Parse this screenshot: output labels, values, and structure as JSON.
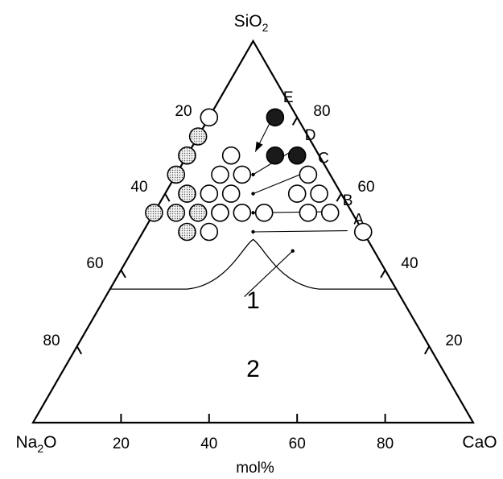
{
  "chart_data": {
    "type": "scatter",
    "subtype": "ternary",
    "vertices": {
      "top": {
        "base": "SiO",
        "sub": "2"
      },
      "left": {
        "base": "Na",
        "sub": "2",
        "tail": "O"
      },
      "right": {
        "base": "CaO",
        "sub": "",
        "tail": ""
      }
    },
    "unit_label": "mol%",
    "bottom_ticks": [
      "20",
      "40",
      "60",
      "80"
    ],
    "left_ticks": [
      "80",
      "60",
      "40",
      "20"
    ],
    "right_ticks": [
      "80",
      "60",
      "40",
      "20"
    ],
    "marker_styles": {
      "open": "#ffffff",
      "dotted": "#d9d9d9",
      "filled": "#1a1a1a"
    },
    "series": [
      {
        "style": "dotted",
        "points": [
          {
            "SiO2": 75,
            "Na2O": 25,
            "CaO": 0
          },
          {
            "SiO2": 70,
            "Na2O": 30,
            "CaO": 0
          },
          {
            "SiO2": 65,
            "Na2O": 35,
            "CaO": 0
          },
          {
            "SiO2": 55,
            "Na2O": 45,
            "CaO": 0
          },
          {
            "SiO2": 60,
            "Na2O": 35,
            "CaO": 5
          },
          {
            "SiO2": 55,
            "Na2O": 40,
            "CaO": 5
          },
          {
            "SiO2": 55,
            "Na2O": 35,
            "CaO": 10
          },
          {
            "SiO2": 50,
            "Na2O": 40,
            "CaO": 10
          },
          {
            "SiO2": 55,
            "Na2O": 30,
            "CaO": 15
          }
        ]
      },
      {
        "style": "open",
        "points": [
          {
            "SiO2": 80,
            "Na2O": 20,
            "CaO": 0
          },
          {
            "SiO2": 70,
            "Na2O": 20,
            "CaO": 10
          },
          {
            "SiO2": 65,
            "Na2O": 25,
            "CaO": 10
          },
          {
            "SiO2": 60,
            "Na2O": 30,
            "CaO": 10
          },
          {
            "SiO2": 65,
            "Na2O": 20,
            "CaO": 15
          },
          {
            "SiO2": 55,
            "Na2O": 30,
            "CaO": 15
          },
          {
            "SiO2": 50,
            "Na2O": 35,
            "CaO": 15
          },
          {
            "SiO2": 60,
            "Na2O": 25,
            "CaO": 15
          },
          {
            "SiO2": 55,
            "Na2O": 25,
            "CaO": 20
          },
          {
            "SiO2": 55,
            "Na2O": 20,
            "CaO": 25
          },
          {
            "SiO2": 65,
            "Na2O": 5,
            "CaO": 30
          },
          {
            "SiO2": 60,
            "Na2O": 10,
            "CaO": 30
          },
          {
            "SiO2": 60,
            "Na2O": 5,
            "CaO": 35
          },
          {
            "SiO2": 55,
            "Na2O": 5,
            "CaO": 40
          },
          {
            "SiO2": 50,
            "Na2O": 0,
            "CaO": 50
          },
          {
            "SiO2": 55,
            "Na2O": 10,
            "CaO": 35
          }
        ]
      },
      {
        "style": "filled",
        "points": [
          {
            "SiO2": 80,
            "Na2O": 5,
            "CaO": 15
          },
          {
            "SiO2": 70,
            "Na2O": 10,
            "CaO": 20
          },
          {
            "SiO2": 70,
            "Na2O": 5,
            "CaO": 25
          }
        ]
      }
    ],
    "annotations": [
      {
        "label": "E",
        "target": {
          "SiO2": 71,
          "Na2O": 14,
          "CaO": 15
        },
        "label_at": {
          "SiO2": 84,
          "Na2O": 0,
          "CaO": 16
        },
        "arrow": true
      },
      {
        "label": "D",
        "target": {
          "SiO2": 65,
          "Na2O": 17.5,
          "CaO": 17.5
        },
        "label_at": {
          "SiO2": 74,
          "Na2O": 0,
          "CaO": 26
        }
      },
      {
        "label": "C",
        "target": {
          "SiO2": 60,
          "Na2O": 20,
          "CaO": 20
        },
        "label_at": {
          "SiO2": 68,
          "Na2O": 0,
          "CaO": 32
        }
      },
      {
        "label": "B",
        "target": {
          "SiO2": 55,
          "Na2O": 22.5,
          "CaO": 22.5
        },
        "label_at": {
          "SiO2": 57,
          "Na2O": 0,
          "CaO": 43
        }
      },
      {
        "label": "A",
        "target": {
          "SiO2": 50,
          "Na2O": 25,
          "CaO": 25
        },
        "label_at": {
          "SiO2": 52,
          "Na2O": 0,
          "CaO": 48
        }
      }
    ],
    "regions": [
      {
        "label": "1",
        "at": {
          "SiO2": 30,
          "Na2O": 35,
          "CaO": 35
        }
      },
      {
        "label": "2",
        "at": {
          "SiO2": 12,
          "Na2O": 44,
          "CaO": 44
        }
      }
    ],
    "region_pointer": {
      "from": {
        "SiO2": 33,
        "Na2O": 35.5,
        "CaO": 31.5
      },
      "to": {
        "SiO2": 45,
        "Na2O": 18.5,
        "CaO": 36.5
      }
    }
  }
}
